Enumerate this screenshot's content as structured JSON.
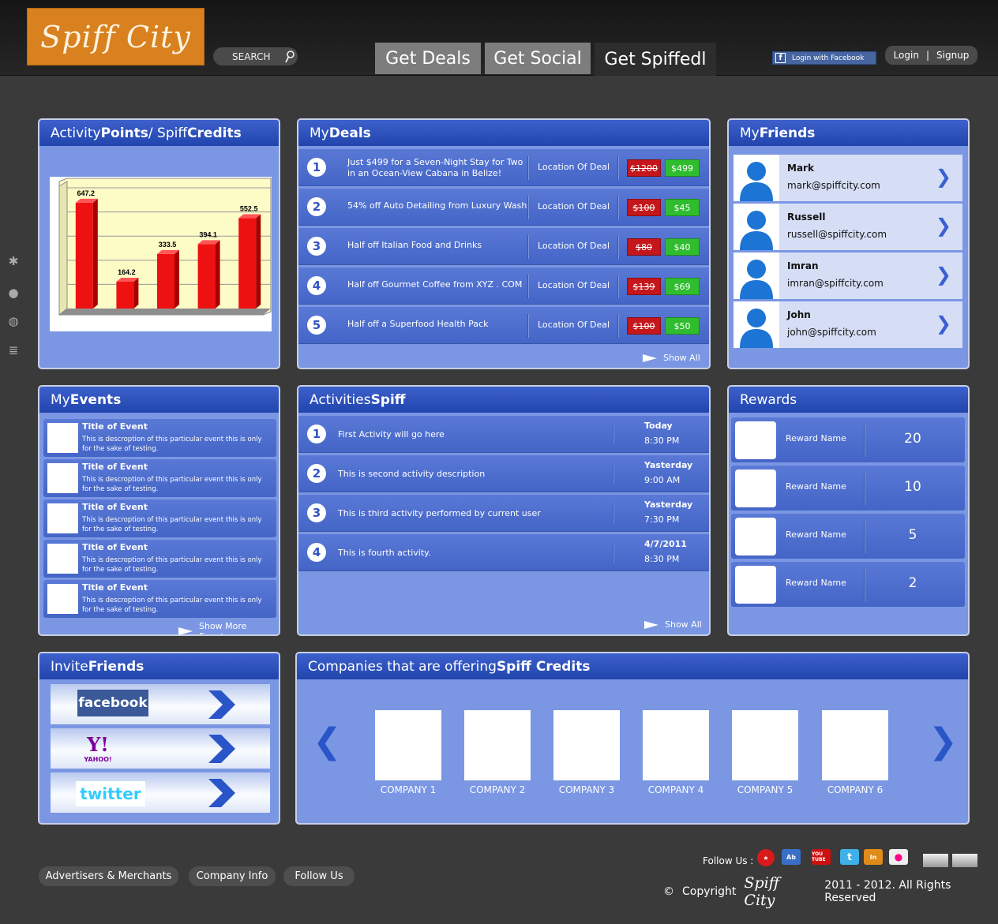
{
  "header": {
    "logo_text": "Spiff City",
    "search_label": "SEARCH",
    "nav_tabs": [
      "Get Deals",
      "Get Social",
      "Get Spiffedl"
    ],
    "facebook_login": "Login with Facebook",
    "login": "Login",
    "signup": "Signup",
    "divider": "|"
  },
  "activity": {
    "title_a": "Activity ",
    "title_b": "Points",
    "title_c": " / Spiff ",
    "title_d": "Credits"
  },
  "chart_data": {
    "type": "bar",
    "values": [
      647.2,
      164.2,
      333.5,
      394.1,
      552.5
    ],
    "value_labels": [
      "647.2",
      "164.2",
      "333.5",
      "394.1",
      "552.5"
    ],
    "ylim": [
      0,
      700
    ],
    "grid": true,
    "color": "#ee1111"
  },
  "deals": {
    "title_a": "My ",
    "title_b": "Deals",
    "location_label": "Location Of Deal",
    "show_all": "Show All",
    "items": [
      {
        "n": "1",
        "line1": "Just $499 for a Seven-Night Stay for Two",
        "line2": "in an  Ocean-View Cabana in Belize!",
        "old": "$1200",
        "new": "$499"
      },
      {
        "n": "2",
        "line1": "54% off Auto Detailing from Luxury Wash",
        "line2": "",
        "old": "$100",
        "new": "$45"
      },
      {
        "n": "3",
        "line1": "Half off Italian Food and Drinks",
        "line2": "",
        "old": "$80",
        "new": "$40"
      },
      {
        "n": "4",
        "line1": "Half off Gourmet Coffee from XYZ . COM",
        "line2": "",
        "old": "$139",
        "new": "$69"
      },
      {
        "n": "5",
        "line1": "Half off a Superfood Health Pack",
        "line2": "",
        "old": "$100",
        "new": "$50"
      }
    ]
  },
  "friends": {
    "title_a": "My ",
    "title_b": "Friends",
    "items": [
      {
        "name": "Mark",
        "email": "mark@spiffcity.com"
      },
      {
        "name": "Russell",
        "email": "russell@spiffcity.com"
      },
      {
        "name": "Imran",
        "email": "imran@spiffcity.com"
      },
      {
        "name": "John",
        "email": "john@spiffcity.com"
      }
    ]
  },
  "events": {
    "title_a": "My ",
    "title_b": "Events",
    "show_more": "Show More Events",
    "items": [
      {
        "title": "Title of Event",
        "desc1": "This is descroption of this particular event this is only",
        "desc2": "for the sake of testing."
      },
      {
        "title": "Title of Event",
        "desc1": "This is descroption of this particular event this is only",
        "desc2": "for the sake of testing."
      },
      {
        "title": "Title of Event",
        "desc1": "This is descroption of this particular event this is only",
        "desc2": "for the sake of testing."
      },
      {
        "title": "Title of Event",
        "desc1": "This is descroption of this particular event this is only",
        "desc2": "for the sake of testing."
      },
      {
        "title": "Title of Event",
        "desc1": "This is descroption of this particular event this is only",
        "desc2": "for the sake of testing."
      }
    ]
  },
  "activities": {
    "title_a": "Activities ",
    "title_b": "Spiff",
    "show_all": "Show All",
    "items": [
      {
        "n": "1",
        "text": "First Activity will go here",
        "day": "Today",
        "time": "8:30 PM"
      },
      {
        "n": "2",
        "text": "This is second activity description",
        "day": "Yasterday",
        "time": "9:00 AM"
      },
      {
        "n": "3",
        "text": "This is third activity performed by current user",
        "day": "Yasterday",
        "time": "7:30 PM"
      },
      {
        "n": "4",
        "text": "This is fourth activity.",
        "day": "4/7/2011",
        "time": "8:30 PM"
      }
    ]
  },
  "rewards": {
    "title": "Rewards",
    "items": [
      {
        "name": "Reward Name",
        "value": "20"
      },
      {
        "name": "Reward Name",
        "value": "10"
      },
      {
        "name": "Reward Name",
        "value": "5"
      },
      {
        "name": "Reward Name",
        "value": "2"
      }
    ]
  },
  "invite": {
    "title_a": "Invite ",
    "title_b": "Friends",
    "facebook": "facebook",
    "yahoo": "Y!",
    "yahoo_sub": "YAHOO!",
    "twitter": "twitter"
  },
  "companies": {
    "title_a": "Companies that are offering ",
    "title_b": "Spiff Credits",
    "prev": "❮",
    "next": "❯",
    "items": [
      "COMPANY 1",
      "COMPANY 2",
      "COMPANY 3",
      "COMPANY 4",
      "COMPANY 5",
      "COMPANY 6"
    ]
  },
  "footer": {
    "links": [
      "Advertisers & Merchants",
      "Company Info",
      "Follow Us"
    ],
    "follow_us": "Follow Us :",
    "copyright_symbol": "©",
    "copyright": "Copyright",
    "brand": "Spiff City",
    "rights": "2011 - 2012. All Rights Reserved",
    "social": [
      "Ab",
      "YOU TUBE",
      "In"
    ]
  }
}
